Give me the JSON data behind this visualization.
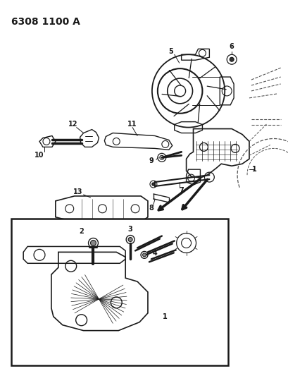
{
  "title": "6308 1100 A",
  "bg_color": "#ffffff",
  "line_color": "#1a1a1a",
  "dashed_color": "#555555",
  "fig_width": 4.1,
  "fig_height": 5.33,
  "dpi": 100
}
